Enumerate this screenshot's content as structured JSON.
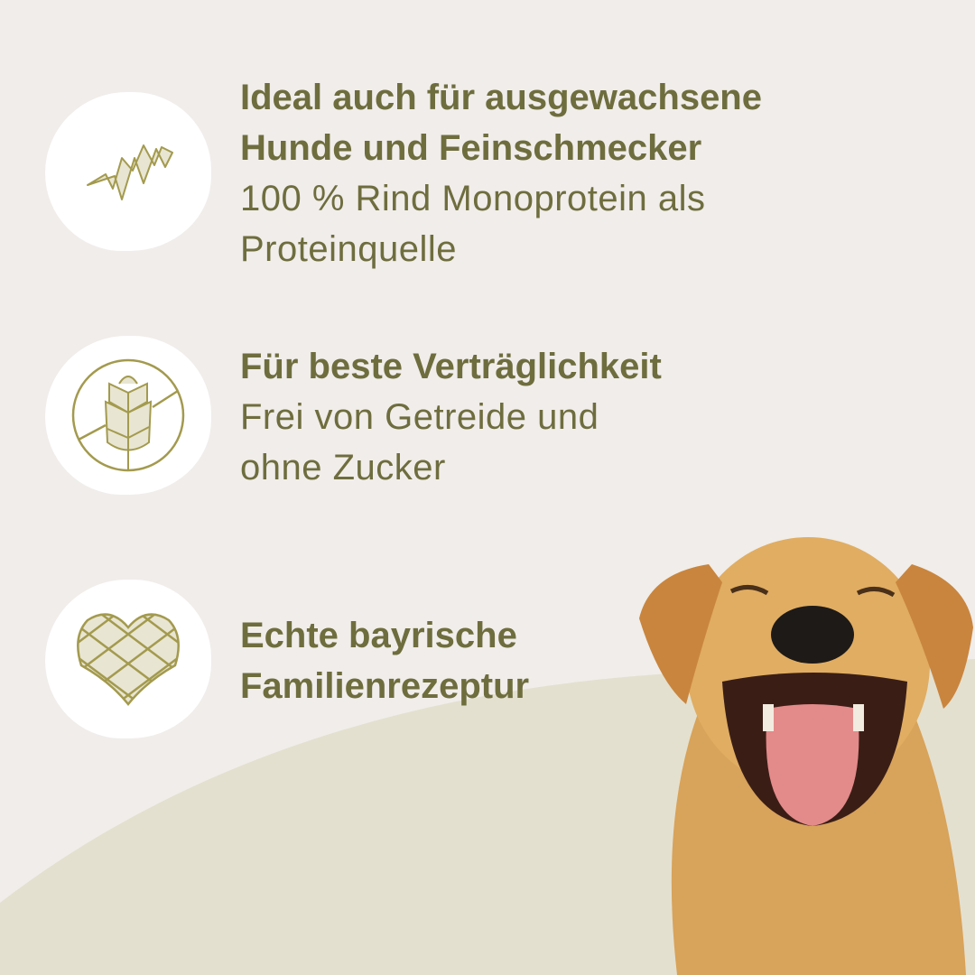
{
  "colors": {
    "background": "#f0edea",
    "text": "#6e6d3e",
    "accent_curve": "#e4e0cf",
    "icon_line": "#a39a4e",
    "icon_fill": "#e8e5d2"
  },
  "features": [
    {
      "icon": "meat-strip-icon",
      "title_lines": [
        "Ideal auch für ausgewachsene",
        "Hunde und Feinschmecker"
      ],
      "desc_lines": [
        "100 % Rind Monoprotein als",
        "Proteinquelle"
      ]
    },
    {
      "icon": "no-grain-icon",
      "title_lines": [
        "Für beste Verträglichkeit"
      ],
      "desc_lines": [
        "Frei von Getreide und",
        "ohne Zucker"
      ]
    },
    {
      "icon": "checkered-heart-icon",
      "title_lines": [
        "Echte bayrische",
        "Familienrezeptur"
      ],
      "desc_lines": []
    }
  ]
}
